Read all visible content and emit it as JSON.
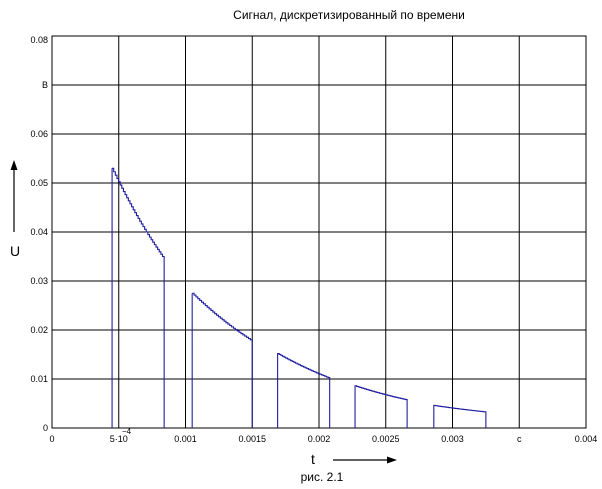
{
  "chart_data": {
    "type": "line",
    "title": "Сигнал, дискретизированный по времени",
    "xlabel": "t",
    "ylabel": "U",
    "x_unit": "с",
    "y_unit": "В",
    "caption": "рис. 2.1",
    "xlim": [
      0,
      0.004
    ],
    "ylim": [
      0,
      0.08
    ],
    "x_ticks": [
      0,
      0.0005,
      0.001,
      0.0015,
      0.002,
      0.0025,
      0.003,
      0.0035,
      0.004
    ],
    "x_tick_labels": [
      "0",
      "5·10",
      "0.001",
      "0.0015",
      "0.002",
      "0.0025",
      "0.003",
      "с",
      "0.004"
    ],
    "x_tick_exponent": "−4",
    "y_ticks": [
      0,
      0.01,
      0.02,
      0.03,
      0.04,
      0.05,
      0.06,
      0.07,
      0.08
    ],
    "y_tick_labels": [
      "0",
      "0.01",
      "0.02",
      "0.03",
      "0.04",
      "0.05",
      "0.06",
      "В",
      "0.08"
    ],
    "grid": true,
    "color": "#1f1fa0",
    "pulses": [
      {
        "start": 0.00045,
        "end": 0.00084,
        "top": 0.053,
        "bottom": 0.035
      },
      {
        "start": 0.00105,
        "end": 0.0015,
        "top": 0.0275,
        "bottom": 0.018
      },
      {
        "start": 0.00169,
        "end": 0.00208,
        "top": 0.0152,
        "bottom": 0.0103
      },
      {
        "start": 0.00227,
        "end": 0.00266,
        "top": 0.0086,
        "bottom": 0.0058
      },
      {
        "start": 0.00286,
        "end": 0.00325,
        "top": 0.0046,
        "bottom": 0.0033
      }
    ]
  }
}
